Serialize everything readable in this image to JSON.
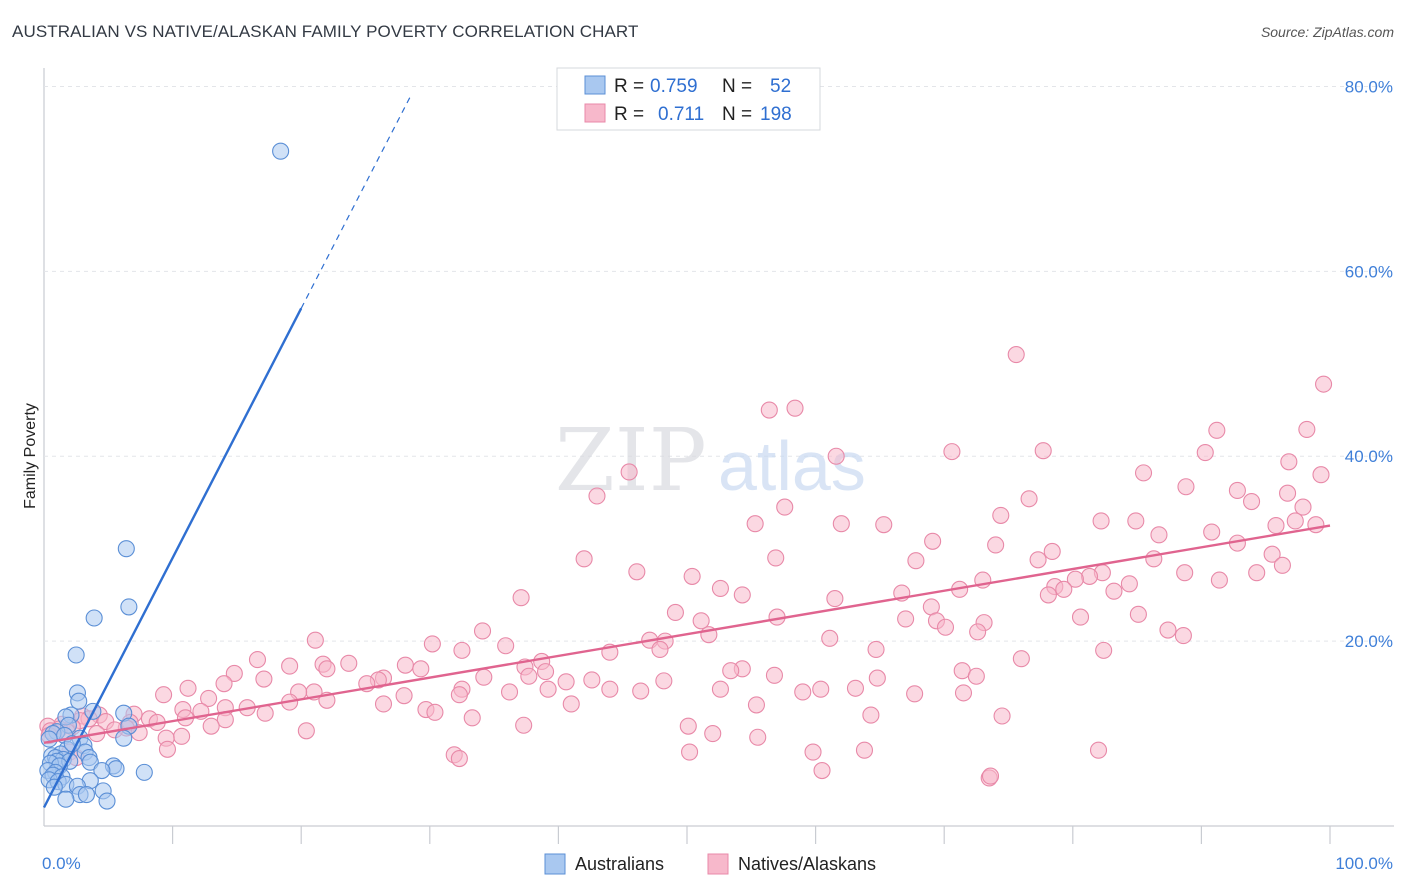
{
  "header": {
    "title": "AUSTRALIAN VS NATIVE/ALASKAN FAMILY POVERTY CORRELATION CHART",
    "source": "Source: ZipAtlas.com"
  },
  "legend_top": {
    "row1": {
      "r_label": "R =",
      "r_value": "0.759",
      "n_label": "N =",
      "n_value": "52"
    },
    "row2": {
      "r_label": "R =",
      "r_value": "0.711",
      "n_label": "N =",
      "n_value": "198"
    }
  },
  "legend_bottom": {
    "series1": "Australians",
    "series2": "Natives/Alaskans"
  },
  "watermark": {
    "part1": "ZIP",
    "part2": "atlas"
  },
  "colors": {
    "blue_fill": "#a9c8f0",
    "blue_stroke": "#5b8fd6",
    "blue_line": "#2f6fd1",
    "pink_fill": "#f7b8cb",
    "pink_stroke": "#e889a8",
    "pink_line": "#e0648f",
    "tick_text": "#3f7fd8"
  },
  "chart_data": {
    "type": "scatter",
    "title": "AUSTRALIAN VS NATIVE/ALASKAN FAMILY POVERTY CORRELATION CHART",
    "xlabel": "",
    "ylabel": "Family Poverty",
    "xlim": [
      0,
      100
    ],
    "ylim": [
      0,
      82
    ],
    "x_tick_labels": [
      "0.0%",
      "100.0%"
    ],
    "y_ticks": [
      20,
      40,
      60,
      80
    ],
    "y_tick_labels": [
      "20.0%",
      "40.0%",
      "60.0%",
      "80.0%"
    ],
    "grid": true,
    "legend_position": "top-center",
    "series": [
      {
        "name": "Australians",
        "R": 0.759,
        "N": 52,
        "trend": {
          "x1": 0,
          "y1": 2.0,
          "x2": 20,
          "y2": 56.0,
          "dashed_to_x": 28.5
        },
        "points": [
          [
            18.4,
            73.0
          ],
          [
            6.4,
            30.0
          ],
          [
            6.6,
            23.7
          ],
          [
            3.9,
            22.5
          ],
          [
            2.5,
            18.5
          ],
          [
            2.6,
            14.4
          ],
          [
            2.7,
            13.5
          ],
          [
            6.2,
            12.2
          ],
          [
            3.8,
            12.4
          ],
          [
            2.1,
            12.0
          ],
          [
            1.7,
            11.8
          ],
          [
            1.9,
            10.9
          ],
          [
            6.6,
            10.8
          ],
          [
            1.0,
            10.2
          ],
          [
            0.7,
            10.0
          ],
          [
            1.6,
            9.8
          ],
          [
            2.8,
            9.5
          ],
          [
            6.2,
            9.5
          ],
          [
            0.4,
            9.4
          ],
          [
            3.1,
            8.7
          ],
          [
            1.8,
            8.3
          ],
          [
            3.2,
            8.0
          ],
          [
            1.3,
            7.8
          ],
          [
            0.6,
            7.6
          ],
          [
            0.9,
            7.4
          ],
          [
            1.5,
            7.2
          ],
          [
            3.5,
            7.4
          ],
          [
            1.0,
            7.0
          ],
          [
            2.0,
            7.0
          ],
          [
            3.6,
            6.9
          ],
          [
            0.5,
            6.8
          ],
          [
            1.2,
            6.5
          ],
          [
            5.4,
            6.5
          ],
          [
            5.6,
            6.2
          ],
          [
            0.3,
            6.0
          ],
          [
            4.5,
            6.0
          ],
          [
            0.9,
            5.8
          ],
          [
            7.8,
            5.8
          ],
          [
            0.7,
            5.5
          ],
          [
            1.4,
            5.3
          ],
          [
            0.4,
            5.0
          ],
          [
            1.1,
            4.8
          ],
          [
            3.6,
            4.9
          ],
          [
            1.7,
            4.5
          ],
          [
            2.6,
            4.3
          ],
          [
            4.6,
            3.8
          ],
          [
            2.8,
            3.4
          ],
          [
            3.3,
            3.4
          ],
          [
            1.7,
            2.9
          ],
          [
            4.9,
            2.7
          ],
          [
            0.8,
            4.2
          ],
          [
            2.2,
            8.9
          ]
        ]
      },
      {
        "name": "Natives/Alaskans",
        "R": 0.711,
        "N": 198,
        "trend": {
          "x1": 0,
          "y1": 9.0,
          "x2": 100,
          "y2": 32.5
        },
        "points": [
          [
            75.6,
            51.0
          ],
          [
            99.5,
            47.8
          ],
          [
            56.4,
            45.0
          ],
          [
            58.4,
            45.2
          ],
          [
            98.2,
            42.9
          ],
          [
            91.2,
            42.8
          ],
          [
            77.7,
            40.6
          ],
          [
            90.3,
            40.4
          ],
          [
            70.6,
            40.5
          ],
          [
            61.6,
            40.0
          ],
          [
            96.8,
            39.4
          ],
          [
            99.3,
            38.0
          ],
          [
            85.5,
            38.2
          ],
          [
            45.5,
            38.3
          ],
          [
            88.8,
            36.7
          ],
          [
            92.8,
            36.3
          ],
          [
            96.7,
            36.0
          ],
          [
            43.0,
            35.7
          ],
          [
            76.6,
            35.4
          ],
          [
            93.9,
            35.1
          ],
          [
            57.6,
            34.5
          ],
          [
            97.9,
            34.5
          ],
          [
            74.4,
            33.6
          ],
          [
            82.2,
            33.0
          ],
          [
            97.3,
            33.0
          ],
          [
            84.9,
            33.0
          ],
          [
            62.0,
            32.7
          ],
          [
            65.3,
            32.6
          ],
          [
            55.3,
            32.7
          ],
          [
            98.9,
            32.6
          ],
          [
            95.8,
            32.5
          ],
          [
            90.8,
            31.8
          ],
          [
            86.7,
            31.5
          ],
          [
            69.1,
            30.8
          ],
          [
            92.8,
            30.6
          ],
          [
            74.0,
            30.4
          ],
          [
            78.4,
            29.7
          ],
          [
            95.5,
            29.4
          ],
          [
            67.8,
            28.7
          ],
          [
            56.9,
            29.0
          ],
          [
            42.0,
            28.9
          ],
          [
            86.3,
            28.9
          ],
          [
            77.3,
            28.8
          ],
          [
            96.3,
            28.2
          ],
          [
            46.1,
            27.5
          ],
          [
            88.7,
            27.4
          ],
          [
            94.3,
            27.4
          ],
          [
            82.3,
            27.4
          ],
          [
            50.4,
            27.0
          ],
          [
            81.3,
            27.0
          ],
          [
            80.2,
            26.7
          ],
          [
            91.4,
            26.6
          ],
          [
            73.0,
            26.6
          ],
          [
            84.4,
            26.2
          ],
          [
            78.6,
            25.9
          ],
          [
            79.3,
            25.6
          ],
          [
            71.2,
            25.6
          ],
          [
            52.6,
            25.7
          ],
          [
            83.2,
            25.4
          ],
          [
            66.7,
            25.2
          ],
          [
            78.1,
            25.0
          ],
          [
            54.3,
            25.0
          ],
          [
            37.1,
            24.7
          ],
          [
            61.5,
            24.6
          ],
          [
            69.0,
            23.7
          ],
          [
            49.1,
            23.1
          ],
          [
            85.1,
            22.9
          ],
          [
            57.0,
            22.6
          ],
          [
            80.6,
            22.6
          ],
          [
            67.0,
            22.4
          ],
          [
            51.1,
            22.2
          ],
          [
            69.4,
            22.2
          ],
          [
            73.1,
            22.0
          ],
          [
            70.1,
            21.5
          ],
          [
            87.4,
            21.2
          ],
          [
            72.6,
            21.0
          ],
          [
            34.1,
            21.1
          ],
          [
            51.7,
            20.7
          ],
          [
            88.6,
            20.6
          ],
          [
            61.1,
            20.3
          ],
          [
            47.1,
            20.1
          ],
          [
            21.1,
            20.1
          ],
          [
            48.3,
            20.0
          ],
          [
            30.2,
            19.7
          ],
          [
            35.9,
            19.5
          ],
          [
            47.9,
            19.1
          ],
          [
            64.7,
            19.1
          ],
          [
            32.5,
            19.0
          ],
          [
            82.4,
            19.0
          ],
          [
            44.0,
            18.8
          ],
          [
            76.0,
            18.1
          ],
          [
            16.6,
            18.0
          ],
          [
            38.7,
            17.8
          ],
          [
            23.7,
            17.6
          ],
          [
            21.7,
            17.5
          ],
          [
            19.1,
            17.3
          ],
          [
            28.1,
            17.4
          ],
          [
            37.4,
            17.2
          ],
          [
            29.3,
            17.0
          ],
          [
            54.3,
            17.0
          ],
          [
            22.0,
            17.0
          ],
          [
            53.4,
            16.8
          ],
          [
            71.4,
            16.8
          ],
          [
            39.0,
            16.7
          ],
          [
            14.8,
            16.5
          ],
          [
            37.7,
            16.2
          ],
          [
            56.8,
            16.3
          ],
          [
            72.5,
            16.2
          ],
          [
            64.8,
            16.0
          ],
          [
            34.2,
            16.1
          ],
          [
            26.4,
            16.0
          ],
          [
            17.1,
            15.9
          ],
          [
            26.0,
            15.8
          ],
          [
            42.6,
            15.8
          ],
          [
            48.2,
            15.7
          ],
          [
            40.6,
            15.6
          ],
          [
            14.0,
            15.4
          ],
          [
            25.1,
            15.4
          ],
          [
            11.2,
            14.9
          ],
          [
            52.6,
            14.8
          ],
          [
            60.4,
            14.8
          ],
          [
            39.2,
            14.8
          ],
          [
            32.5,
            14.8
          ],
          [
            44.0,
            14.8
          ],
          [
            63.1,
            14.9
          ],
          [
            46.4,
            14.6
          ],
          [
            21.0,
            14.5
          ],
          [
            59.0,
            14.5
          ],
          [
            71.5,
            14.4
          ],
          [
            19.8,
            14.5
          ],
          [
            36.2,
            14.5
          ],
          [
            67.7,
            14.3
          ],
          [
            9.3,
            14.2
          ],
          [
            28.0,
            14.1
          ],
          [
            32.3,
            14.2
          ],
          [
            12.8,
            13.8
          ],
          [
            22.0,
            13.6
          ],
          [
            19.1,
            13.4
          ],
          [
            41.0,
            13.2
          ],
          [
            26.4,
            13.2
          ],
          [
            55.4,
            13.1
          ],
          [
            15.8,
            12.8
          ],
          [
            14.1,
            12.8
          ],
          [
            29.7,
            12.6
          ],
          [
            10.8,
            12.6
          ],
          [
            12.2,
            12.4
          ],
          [
            30.4,
            12.3
          ],
          [
            17.2,
            12.2
          ],
          [
            7.0,
            12.1
          ],
          [
            4.3,
            12.0
          ],
          [
            64.3,
            12.0
          ],
          [
            3.0,
            11.9
          ],
          [
            74.5,
            11.9
          ],
          [
            11.0,
            11.7
          ],
          [
            33.3,
            11.7
          ],
          [
            3.5,
            11.6
          ],
          [
            8.2,
            11.6
          ],
          [
            14.1,
            11.5
          ],
          [
            2.8,
            11.4
          ],
          [
            4.8,
            11.3
          ],
          [
            6.7,
            11.2
          ],
          [
            8.8,
            11.2
          ],
          [
            1.4,
            11.0
          ],
          [
            0.3,
            10.8
          ],
          [
            13.0,
            10.8
          ],
          [
            50.1,
            10.8
          ],
          [
            37.3,
            10.9
          ],
          [
            2.2,
            10.7
          ],
          [
            1.2,
            10.5
          ],
          [
            6.4,
            10.6
          ],
          [
            5.5,
            10.4
          ],
          [
            0.5,
            10.3
          ],
          [
            1.8,
            10.2
          ],
          [
            7.4,
            10.1
          ],
          [
            4.1,
            10.0
          ],
          [
            10.7,
            9.7
          ],
          [
            20.4,
            10.3
          ],
          [
            52.0,
            10.0
          ],
          [
            0.4,
            9.8
          ],
          [
            9.5,
            9.5
          ],
          [
            55.5,
            9.6
          ],
          [
            2.0,
            8.0
          ],
          [
            9.6,
            8.3
          ],
          [
            50.2,
            8.0
          ],
          [
            59.8,
            8.0
          ],
          [
            63.8,
            8.2
          ],
          [
            82.0,
            8.2
          ],
          [
            31.9,
            7.7
          ],
          [
            2.5,
            7.4
          ],
          [
            32.3,
            7.3
          ],
          [
            60.5,
            6.0
          ],
          [
            73.5,
            5.2
          ],
          [
            73.6,
            5.4
          ]
        ]
      }
    ]
  }
}
